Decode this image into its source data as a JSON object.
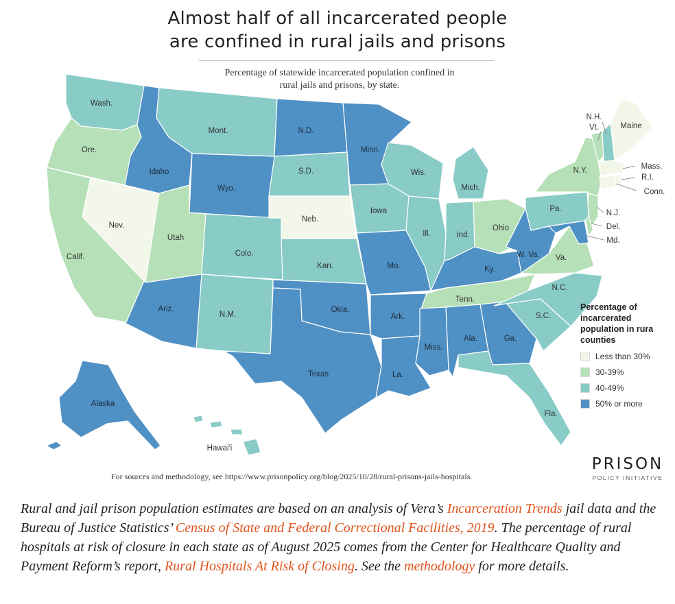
{
  "title": {
    "line1": "Almost half of all incarcerated people",
    "line2": "are confined in rural jails and prisons"
  },
  "subtitle": {
    "line1": "Percentage of statewide incarcerated population confined in",
    "line2": "rural jails and prisons, by state."
  },
  "colors": {
    "lt30": "#f2f7ea",
    "c30_39": "#b6e0b8",
    "c40_49": "#89cbc6",
    "c50plus": "#4f90c5"
  },
  "legend": {
    "title_line1": "Percentage of",
    "title_line2": "incarcerated",
    "title_line3": "population in rura",
    "title_line4": "counties",
    "items": [
      {
        "label": "Less than 30%",
        "category": "lt30"
      },
      {
        "label": "30-39%",
        "category": "c30_39"
      },
      {
        "label": "40-49%",
        "category": "c40_49"
      },
      {
        "label": "50% or more",
        "category": "c50plus"
      }
    ]
  },
  "states": [
    {
      "name": "Wash.",
      "category": "c40_49"
    },
    {
      "name": "Ore.",
      "category": "c30_39"
    },
    {
      "name": "Calif.",
      "category": "c30_39"
    },
    {
      "name": "Nev.",
      "category": "lt30"
    },
    {
      "name": "Idaho",
      "category": "c50plus"
    },
    {
      "name": "Mont.",
      "category": "c40_49"
    },
    {
      "name": "Wyo.",
      "category": "c50plus"
    },
    {
      "name": "Utah",
      "category": "c30_39"
    },
    {
      "name": "Colo.",
      "category": "c40_49"
    },
    {
      "name": "Ariz.",
      "category": "c50plus"
    },
    {
      "name": "N.M.",
      "category": "c40_49"
    },
    {
      "name": "N.D.",
      "category": "c50plus"
    },
    {
      "name": "S.D.",
      "category": "c40_49"
    },
    {
      "name": "Neb.",
      "category": "lt30"
    },
    {
      "name": "Kan.",
      "category": "c40_49"
    },
    {
      "name": "Okla.",
      "category": "c50plus"
    },
    {
      "name": "Texas",
      "category": "c50plus"
    },
    {
      "name": "Minn.",
      "category": "c50plus"
    },
    {
      "name": "Iowa",
      "category": "c40_49"
    },
    {
      "name": "Mo.",
      "category": "c50plus"
    },
    {
      "name": "Ark.",
      "category": "c50plus"
    },
    {
      "name": "La.",
      "category": "c50plus"
    },
    {
      "name": "Wis.",
      "category": "c40_49"
    },
    {
      "name": "Ill.",
      "category": "c40_49"
    },
    {
      "name": "Mich.",
      "category": "c40_49"
    },
    {
      "name": "Ind.",
      "category": "c40_49"
    },
    {
      "name": "Ohio",
      "category": "c30_39"
    },
    {
      "name": "Ky.",
      "category": "c50plus"
    },
    {
      "name": "Tenn.",
      "category": "c30_39"
    },
    {
      "name": "Miss.",
      "category": "c50plus"
    },
    {
      "name": "Ala.",
      "category": "c50plus"
    },
    {
      "name": "Ga.",
      "category": "c50plus"
    },
    {
      "name": "Fla.",
      "category": "c40_49"
    },
    {
      "name": "S.C.",
      "category": "c40_49"
    },
    {
      "name": "N.C.",
      "category": "c40_49"
    },
    {
      "name": "Va.",
      "category": "c30_39"
    },
    {
      "name": "W. Va.",
      "category": "c50plus"
    },
    {
      "name": "Md.",
      "category": "c50plus"
    },
    {
      "name": "Del.",
      "category": "c30_39"
    },
    {
      "name": "N.J.",
      "category": "c30_39"
    },
    {
      "name": "Pa.",
      "category": "c40_49"
    },
    {
      "name": "N.Y.",
      "category": "c30_39"
    },
    {
      "name": "Vt.",
      "category": "c30_39"
    },
    {
      "name": "N.H.",
      "category": "c40_49"
    },
    {
      "name": "Maine",
      "category": "lt30"
    },
    {
      "name": "Mass.",
      "category": "lt30"
    },
    {
      "name": "R.I.",
      "category": "lt30"
    },
    {
      "name": "Conn.",
      "category": "lt30"
    },
    {
      "name": "Alaska",
      "category": "c50plus"
    },
    {
      "name": "Hawai'i",
      "category": "c40_49"
    }
  ],
  "source_note": "For sources and methodology, see https://www.prisonpolicy.org/blog/2025/10/28/rural-prisons-jails-hospitals.",
  "logo": {
    "main": "PRISON",
    "sub": "POLICY INITIATIVE"
  },
  "caption": {
    "t1": "Rural and jail prison population estimates are based on an analysis of Vera’s ",
    "link1": "Incarceration Trends",
    "t2": " jail data and the Bureau of Justice Statistics’ ",
    "link2": "Census of State and Federal Correctional Facilities, 2019",
    "t3": ". The percentage of rural hospitals at risk of closure in each state as of August 2025 comes from the Center for Healthcare Quality and Payment Reform’s report, ",
    "link3": "Rural Hospitals At Risk of Closing",
    "t4": ". See the ",
    "link4": "methodology",
    "t5": " for more details."
  }
}
